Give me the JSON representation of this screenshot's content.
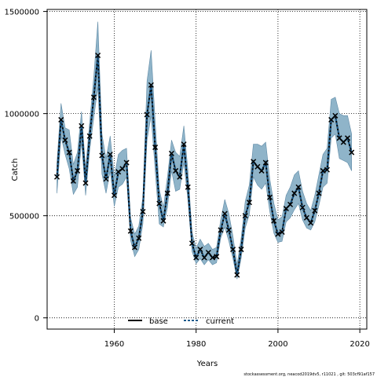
{
  "chart_data": {
    "type": "line",
    "title": "",
    "xlabel": "Years",
    "ylabel": "Catch",
    "xlim": [
      1943.6,
      2021.7
    ],
    "ylim": [
      -55000,
      1510000
    ],
    "x_ticks": [
      1960,
      1980,
      2000,
      2020
    ],
    "x_tick_labels": [
      "1960",
      "1980",
      "2000",
      "2020"
    ],
    "y_ticks": [
      0,
      500000,
      1000000,
      1500000
    ],
    "y_tick_labels": [
      "0",
      "500000",
      "1000000",
      "1500000"
    ],
    "grid": "dotted",
    "legend": {
      "placement": "bottom-left",
      "entries": [
        "base",
        "current"
      ]
    },
    "footer": "stockassessment.org, neacod2019dv5, r11021 , git: 503cf91af157",
    "colors": {
      "band": "#8fb4c9",
      "band_edge": "#5f8aa6",
      "line": "#000000",
      "current_line": "#1a5a8c"
    },
    "x": [
      1946,
      1947,
      1948,
      1949,
      1950,
      1951,
      1952,
      1953,
      1954,
      1955,
      1956,
      1957,
      1958,
      1959,
      1960,
      1961,
      1962,
      1963,
      1964,
      1965,
      1966,
      1967,
      1968,
      1969,
      1970,
      1971,
      1972,
      1973,
      1974,
      1975,
      1976,
      1977,
      1978,
      1979,
      1980,
      1981,
      1982,
      1983,
      1984,
      1985,
      1986,
      1987,
      1988,
      1989,
      1990,
      1991,
      1992,
      1993,
      1994,
      1995,
      1996,
      1997,
      1998,
      1999,
      2000,
      2001,
      2002,
      2003,
      2004,
      2005,
      2006,
      2007,
      2008,
      2009,
      2010,
      2011,
      2012,
      2013,
      2014,
      2015,
      2016,
      2017,
      2018
    ],
    "series": [
      {
        "name": "base",
        "style": "solid",
        "values": [
          690000,
          970000,
          870000,
          810000,
          670000,
          720000,
          940000,
          660000,
          890000,
          1080000,
          1285000,
          795000,
          680000,
          800000,
          600000,
          715000,
          730000,
          760000,
          425000,
          345000,
          390000,
          520000,
          995000,
          1140000,
          835000,
          560000,
          475000,
          610000,
          805000,
          720000,
          690000,
          850000,
          640000,
          365000,
          295000,
          335000,
          295000,
          320000,
          295000,
          300000,
          430000,
          510000,
          430000,
          335000,
          210000,
          335000,
          500000,
          565000,
          765000,
          740000,
          720000,
          760000,
          590000,
          475000,
          410000,
          420000,
          535000,
          555000,
          610000,
          640000,
          540000,
          490000,
          465000,
          525000,
          610000,
          720000,
          725000,
          970000,
          990000,
          880000,
          860000,
          880000,
          810000
        ]
      },
      {
        "name": "current",
        "style": "dashed",
        "values": [
          690000,
          970000,
          870000,
          810000,
          670000,
          720000,
          940000,
          660000,
          890000,
          1080000,
          1285000,
          795000,
          680000,
          800000,
          600000,
          715000,
          730000,
          760000,
          425000,
          345000,
          390000,
          520000,
          995000,
          1140000,
          835000,
          560000,
          475000,
          610000,
          805000,
          720000,
          690000,
          850000,
          640000,
          365000,
          295000,
          335000,
          295000,
          320000,
          295000,
          300000,
          430000,
          510000,
          430000,
          335000,
          210000,
          335000,
          500000,
          565000,
          765000,
          740000,
          720000,
          760000,
          590000,
          475000,
          410000,
          420000,
          535000,
          555000,
          610000,
          640000,
          540000,
          490000,
          465000,
          525000,
          610000,
          720000,
          725000,
          970000,
          990000,
          880000,
          860000,
          880000,
          810000
        ]
      }
    ],
    "observed": [
      690000,
      970000,
      870000,
      810000,
      670000,
      720000,
      940000,
      660000,
      890000,
      1080000,
      1285000,
      795000,
      680000,
      800000,
      600000,
      715000,
      730000,
      760000,
      425000,
      345000,
      390000,
      520000,
      995000,
      1140000,
      835000,
      560000,
      475000,
      610000,
      805000,
      720000,
      690000,
      850000,
      640000,
      365000,
      295000,
      335000,
      295000,
      320000,
      295000,
      300000,
      430000,
      510000,
      430000,
      335000,
      210000,
      335000,
      500000,
      565000,
      765000,
      740000,
      720000,
      760000,
      590000,
      475000,
      410000,
      420000,
      535000,
      555000,
      610000,
      640000,
      540000,
      490000,
      465000,
      525000,
      610000,
      720000,
      725000,
      970000,
      990000,
      880000,
      860000,
      880000,
      810000
    ],
    "band_upper": [
      760000,
      1050000,
      930000,
      920000,
      750000,
      810000,
      1010000,
      730000,
      960000,
      1180000,
      1450000,
      900000,
      780000,
      890000,
      690000,
      800000,
      820000,
      830000,
      490000,
      410000,
      450000,
      590000,
      1160000,
      1310000,
      960000,
      630000,
      540000,
      690000,
      870000,
      810000,
      790000,
      940000,
      720000,
      420000,
      340000,
      385000,
      350000,
      365000,
      335000,
      345000,
      480000,
      580000,
      510000,
      400000,
      260000,
      390000,
      570000,
      650000,
      850000,
      850000,
      840000,
      860000,
      680000,
      560000,
      480000,
      495000,
      600000,
      640000,
      700000,
      720000,
      620000,
      560000,
      525000,
      600000,
      700000,
      800000,
      830000,
      1070000,
      1080000,
      1000000,
      990000,
      990000,
      900000
    ],
    "band_lower": [
      610000,
      890000,
      800000,
      730000,
      605000,
      640000,
      860000,
      600000,
      820000,
      980000,
      1130000,
      705000,
      610000,
      720000,
      545000,
      640000,
      655000,
      690000,
      380000,
      300000,
      335000,
      460000,
      870000,
      990000,
      720000,
      460000,
      445000,
      540000,
      720000,
      620000,
      630000,
      760000,
      575000,
      325000,
      265000,
      290000,
      260000,
      285000,
      260000,
      270000,
      390000,
      445000,
      375000,
      290000,
      190000,
      290000,
      440000,
      505000,
      690000,
      650000,
      630000,
      660000,
      520000,
      415000,
      370000,
      375000,
      470000,
      490000,
      530000,
      560000,
      480000,
      440000,
      430000,
      470000,
      550000,
      640000,
      660000,
      880000,
      900000,
      780000,
      770000,
      760000,
      720000
    ]
  }
}
